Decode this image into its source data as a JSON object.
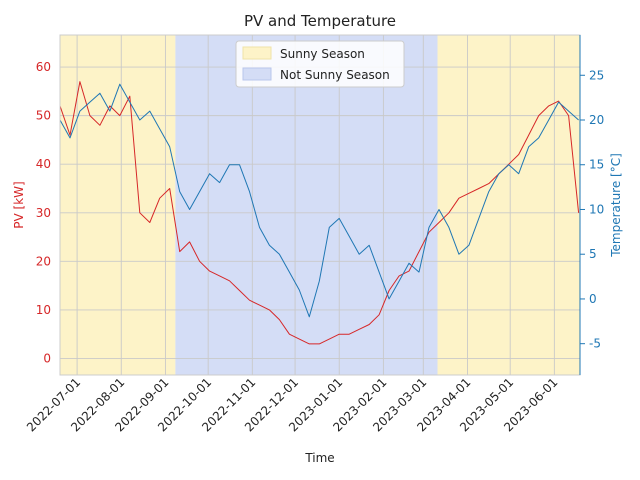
{
  "chart_data": {
    "type": "line",
    "title": "PV and Temperature",
    "xlabel": "Time",
    "ylabel_left": "PV [kW]",
    "ylabel_right": "Temperature [°C]",
    "x_range": [
      "2022-06-19",
      "2023-06-19"
    ],
    "y_left_range": [
      -3.4,
      66.6
    ],
    "y_right_range": [
      -8.5,
      29.5
    ],
    "x_ticks": [
      "2022-07-01",
      "2022-08-01",
      "2022-09-01",
      "2022-10-01",
      "2022-11-01",
      "2022-12-01",
      "2023-01-01",
      "2023-02-01",
      "2023-03-01",
      "2023-04-01",
      "2023-05-01",
      "2023-06-01"
    ],
    "y_left_ticks": [
      0,
      10,
      20,
      30,
      40,
      50,
      60
    ],
    "y_right_ticks": [
      -5,
      0,
      5,
      10,
      15,
      20,
      25
    ],
    "grid": true,
    "legend_position": "top-center",
    "bands": [
      {
        "name": "Sunny Season",
        "start": "2022-06-19",
        "end": "2022-09-08",
        "color": "#fdf3c8"
      },
      {
        "name": "Not Sunny Season",
        "start": "2022-09-08",
        "end": "2023-03-11",
        "color": "#d4ddf6"
      },
      {
        "name": "Sunny Season",
        "start": "2023-03-11",
        "end": "2023-06-19",
        "color": "#fdf3c8"
      }
    ],
    "legend": [
      {
        "label": "Sunny Season",
        "color": "#fdf3c8",
        "edge": "#f0e3a8"
      },
      {
        "label": "Not Sunny Season",
        "color": "#d4ddf6",
        "edge": "#b9c6ec"
      }
    ],
    "series": [
      {
        "name": "PV",
        "axis": "left",
        "color": "#d62728",
        "points": [
          [
            "2022-06-19",
            52
          ],
          [
            "2022-06-26",
            46
          ],
          [
            "2022-07-03",
            57
          ],
          [
            "2022-07-10",
            50
          ],
          [
            "2022-07-17",
            48
          ],
          [
            "2022-07-24",
            52
          ],
          [
            "2022-07-31",
            50
          ],
          [
            "2022-08-07",
            54
          ],
          [
            "2022-08-14",
            30
          ],
          [
            "2022-08-21",
            28
          ],
          [
            "2022-08-28",
            33
          ],
          [
            "2022-09-04",
            35
          ],
          [
            "2022-09-11",
            22
          ],
          [
            "2022-09-18",
            24
          ],
          [
            "2022-09-25",
            20
          ],
          [
            "2022-10-02",
            18
          ],
          [
            "2022-10-09",
            17
          ],
          [
            "2022-10-16",
            16
          ],
          [
            "2022-10-23",
            14
          ],
          [
            "2022-10-30",
            12
          ],
          [
            "2022-11-06",
            11
          ],
          [
            "2022-11-13",
            10
          ],
          [
            "2022-11-20",
            8
          ],
          [
            "2022-11-27",
            5
          ],
          [
            "2022-12-04",
            4
          ],
          [
            "2022-12-11",
            3
          ],
          [
            "2022-12-18",
            3
          ],
          [
            "2022-12-25",
            4
          ],
          [
            "2023-01-01",
            5
          ],
          [
            "2023-01-08",
            5
          ],
          [
            "2023-01-15",
            6
          ],
          [
            "2023-01-22",
            7
          ],
          [
            "2023-01-29",
            9
          ],
          [
            "2023-02-05",
            14
          ],
          [
            "2023-02-12",
            17
          ],
          [
            "2023-02-19",
            18
          ],
          [
            "2023-02-26",
            22
          ],
          [
            "2023-03-05",
            26
          ],
          [
            "2023-03-12",
            28
          ],
          [
            "2023-03-19",
            30
          ],
          [
            "2023-03-26",
            33
          ],
          [
            "2023-04-02",
            34
          ],
          [
            "2023-04-09",
            35
          ],
          [
            "2023-04-16",
            36
          ],
          [
            "2023-04-23",
            38
          ],
          [
            "2023-04-30",
            40
          ],
          [
            "2023-05-07",
            42
          ],
          [
            "2023-05-14",
            46
          ],
          [
            "2023-05-21",
            50
          ],
          [
            "2023-05-28",
            52
          ],
          [
            "2023-06-04",
            53
          ],
          [
            "2023-06-11",
            50
          ],
          [
            "2023-06-18",
            30
          ]
        ]
      },
      {
        "name": "Temperature",
        "axis": "right",
        "color": "#1f77b4",
        "points": [
          [
            "2022-06-19",
            20
          ],
          [
            "2022-06-26",
            18
          ],
          [
            "2022-07-03",
            21
          ],
          [
            "2022-07-10",
            22
          ],
          [
            "2022-07-17",
            23
          ],
          [
            "2022-07-24",
            21
          ],
          [
            "2022-07-31",
            24
          ],
          [
            "2022-08-07",
            22
          ],
          [
            "2022-08-14",
            20
          ],
          [
            "2022-08-21",
            21
          ],
          [
            "2022-08-28",
            19
          ],
          [
            "2022-09-04",
            17
          ],
          [
            "2022-09-11",
            12
          ],
          [
            "2022-09-18",
            10
          ],
          [
            "2022-09-25",
            12
          ],
          [
            "2022-10-02",
            14
          ],
          [
            "2022-10-09",
            13
          ],
          [
            "2022-10-16",
            15
          ],
          [
            "2022-10-23",
            15
          ],
          [
            "2022-10-30",
            12
          ],
          [
            "2022-11-06",
            8
          ],
          [
            "2022-11-13",
            6
          ],
          [
            "2022-11-20",
            5
          ],
          [
            "2022-11-27",
            3
          ],
          [
            "2022-12-04",
            1
          ],
          [
            "2022-12-11",
            -2
          ],
          [
            "2022-12-18",
            2
          ],
          [
            "2022-12-25",
            8
          ],
          [
            "2023-01-01",
            9
          ],
          [
            "2023-01-08",
            7
          ],
          [
            "2023-01-15",
            5
          ],
          [
            "2023-01-22",
            6
          ],
          [
            "2023-01-29",
            3
          ],
          [
            "2023-02-05",
            0
          ],
          [
            "2023-02-12",
            2
          ],
          [
            "2023-02-19",
            4
          ],
          [
            "2023-02-26",
            3
          ],
          [
            "2023-03-05",
            8
          ],
          [
            "2023-03-12",
            10
          ],
          [
            "2023-03-19",
            8
          ],
          [
            "2023-03-26",
            5
          ],
          [
            "2023-04-02",
            6
          ],
          [
            "2023-04-09",
            9
          ],
          [
            "2023-04-16",
            12
          ],
          [
            "2023-04-23",
            14
          ],
          [
            "2023-04-30",
            15
          ],
          [
            "2023-05-07",
            14
          ],
          [
            "2023-05-14",
            17
          ],
          [
            "2023-05-21",
            18
          ],
          [
            "2023-05-28",
            20
          ],
          [
            "2023-06-04",
            22
          ],
          [
            "2023-06-11",
            21
          ],
          [
            "2023-06-18",
            20
          ]
        ]
      }
    ]
  }
}
